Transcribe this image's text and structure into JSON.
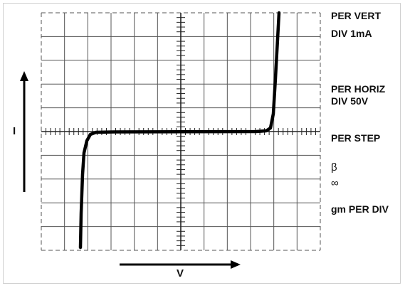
{
  "settings": {
    "per_vert": "PER VERT",
    "div_1ma": "DIV 1mA",
    "per_horiz": "PER HORIZ",
    "div_50v": "DIV 50V",
    "per_step": "PER STEP",
    "beta": "β",
    "infinity": "∞",
    "gm_per_div": "gm PER DIV"
  },
  "axes": {
    "y_label": "I",
    "x_label": "V"
  },
  "colors": {
    "trace": "#000000",
    "grid": "#555555"
  }
}
